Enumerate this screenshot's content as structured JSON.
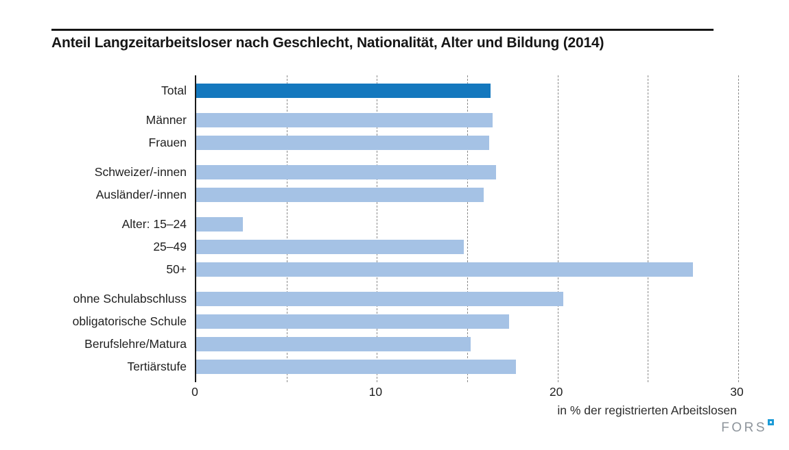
{
  "header": {
    "title": "Anteil Langzeitarbeitsloser nach Geschlecht, Nationalität, Alter und Bildung (2014)"
  },
  "chart_data": {
    "type": "bar",
    "orientation": "horizontal",
    "title": "Anteil Langzeitarbeitsloser nach Geschlecht, Nationalität, Alter und Bildung (2014)",
    "xlabel": "in % der registrierten Arbeitslosen",
    "ylabel": "",
    "xlim": [
      0,
      30
    ],
    "xticks": [
      0,
      10,
      20,
      30
    ],
    "gridline_step": 5,
    "grid": true,
    "legend": false,
    "groups": [
      {
        "name": "total",
        "rows": [
          {
            "label": "Total",
            "value": 16.3,
            "highlight": true
          }
        ]
      },
      {
        "name": "geschlecht",
        "rows": [
          {
            "label": "Männer",
            "value": 16.4
          },
          {
            "label": "Frauen",
            "value": 16.2
          }
        ]
      },
      {
        "name": "nationalitaet",
        "rows": [
          {
            "label": "Schweizer/-innen",
            "value": 16.6
          },
          {
            "label": "Ausländer/-innen",
            "value": 15.9
          }
        ]
      },
      {
        "name": "alter",
        "rows": [
          {
            "label": "Alter: 15–24",
            "value": 2.6
          },
          {
            "label": "25–49",
            "value": 14.8
          },
          {
            "label": "50+",
            "value": 27.5
          }
        ]
      },
      {
        "name": "bildung",
        "rows": [
          {
            "label": "ohne Schulabschluss",
            "value": 20.3
          },
          {
            "label": "obligatorische Schule",
            "value": 17.3
          },
          {
            "label": "Berufslehre/Matura",
            "value": 15.2
          },
          {
            "label": "Tertiärstufe",
            "value": 17.7
          }
        ]
      }
    ],
    "colors": {
      "bar": "#a5c2e5",
      "bar_highlight": "#1478be",
      "grid": "#8a8a8a",
      "axis": "#1a1a1a"
    }
  },
  "footer": {
    "brand": "FORS",
    "brand_color": "#8d949b",
    "brand_square_color": "#1d9bd7"
  }
}
